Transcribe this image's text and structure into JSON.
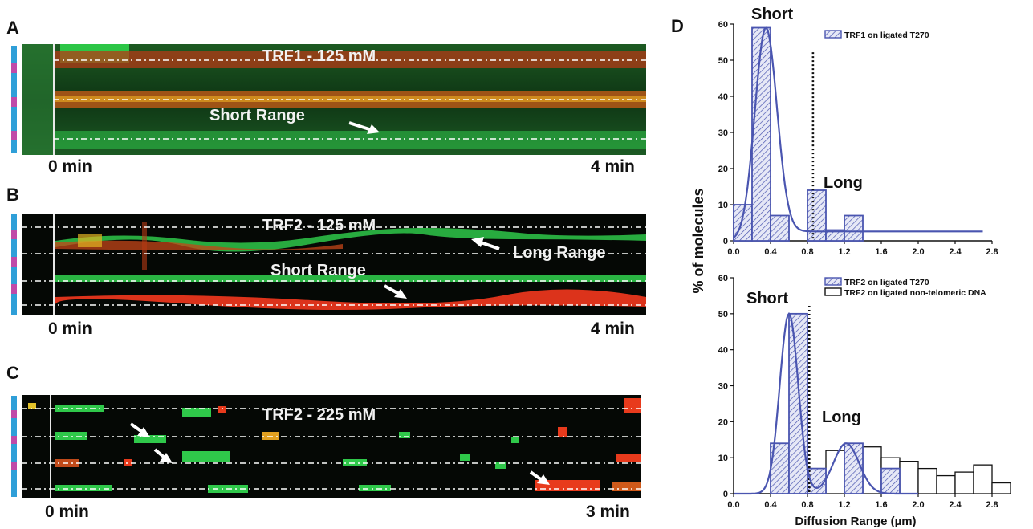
{
  "panels": {
    "A": {
      "letter": "A",
      "title": "TRF1 - 125 mM",
      "annotation": "Short Range",
      "start_label": "0 min",
      "end_label": "4 min"
    },
    "B": {
      "letter": "B",
      "title": "TRF2 - 125 mM",
      "annotation_short": "Short Range",
      "annotation_long": "Long Range",
      "start_label": "0 min",
      "end_label": "4 min"
    },
    "C": {
      "letter": "C",
      "title": "TRF2 - 225 mM",
      "start_label": "0 min",
      "end_label": "3 min"
    },
    "D": {
      "letter": "D"
    }
  },
  "colors": {
    "green": "#27c846",
    "red": "#f03a1e",
    "yellow": "#e9c21f",
    "bar_blue": "#2f9fd8",
    "bar_magenta": "#c04aa8",
    "hist_blue": "#4a55b0"
  },
  "chart_data": [
    {
      "type": "bar",
      "title": "",
      "xlabel": "",
      "ylabel": "% of molecules",
      "xlim": [
        0.0,
        2.8
      ],
      "ylim": [
        0,
        60
      ],
      "xticks": [
        "0.0",
        "0.4",
        "0.8",
        "1.2",
        "1.6",
        "2.0",
        "2.4",
        "2.8"
      ],
      "yticks": [
        "0",
        "10",
        "20",
        "30",
        "40",
        "50",
        "60"
      ],
      "bin_width": 0.2,
      "series": [
        {
          "name": "TRF1 on ligated T270",
          "style": "hatched",
          "bin_centers": [
            0.1,
            0.3,
            0.5,
            0.7,
            0.9,
            1.1,
            1.3
          ],
          "values": [
            10,
            59,
            7,
            0,
            14,
            3,
            7
          ]
        }
      ],
      "fit_curve": {
        "peak_x": 0.35,
        "peak_y": 59,
        "sigma": 0.12,
        "baseline": 2.6,
        "x_end": 2.7
      },
      "threshold_x": 0.86,
      "annotations": [
        "Short",
        "Long"
      ]
    },
    {
      "type": "bar",
      "title": "",
      "xlabel": "Diffusion Range (µm)",
      "ylabel": "% of molecules",
      "xlim": [
        0.0,
        2.8
      ],
      "ylim": [
        0,
        60
      ],
      "xticks": [
        "0.0",
        "0.4",
        "0.8",
        "1.2",
        "1.6",
        "2.0",
        "2.4",
        "2.8"
      ],
      "yticks": [
        "0",
        "10",
        "20",
        "30",
        "40",
        "50",
        "60"
      ],
      "bin_width": 0.2,
      "series": [
        {
          "name": "TRF2 on ligated T270",
          "style": "hatched",
          "bin_centers": [
            0.5,
            0.7,
            0.9,
            1.1,
            1.3,
            1.5,
            1.7
          ],
          "values": [
            14,
            50,
            7,
            0,
            14,
            0,
            7
          ]
        },
        {
          "name": "TRF2 on ligated non-telomeric DNA",
          "style": "open",
          "bin_centers": [
            0.5,
            0.7,
            0.9,
            1.1,
            1.3,
            1.5,
            1.7,
            1.9,
            2.1,
            2.3,
            2.5,
            2.7,
            2.9
          ],
          "values": [
            0,
            9,
            0,
            12,
            12,
            13,
            10,
            9,
            7,
            5,
            6,
            8,
            3
          ]
        }
      ],
      "fit_curve": {
        "peak_x": 0.6,
        "peak_y": 50,
        "sigma": 0.1,
        "x_end": 2.0,
        "second_peak_x": 1.22,
        "second_peak_y": 14,
        "second_sigma": 0.14
      },
      "threshold_x": 0.82,
      "annotations": [
        "Short",
        "Long"
      ]
    }
  ]
}
